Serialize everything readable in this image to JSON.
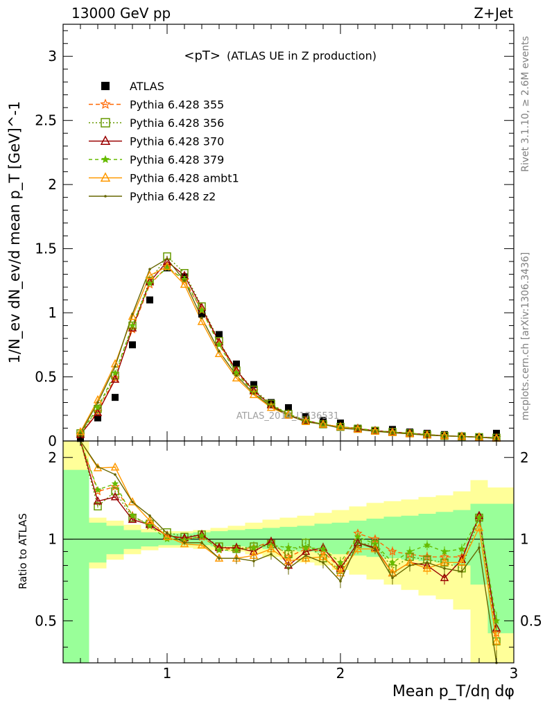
{
  "header": {
    "left": "13000 GeV pp",
    "right": "Z+Jet",
    "plot_title": "<pT>",
    "plot_subtitle": "(ATLAS UE in Z production)",
    "watermark": "ATLAS_2014_I1736531",
    "side_text_top": "Rivet 3.1.10, ≥ 2.6M events",
    "side_text_bottom": "mcplots.cern.ch [arXiv:1306.3436]"
  },
  "chart_data": [
    {
      "type": "line",
      "panel": "main",
      "ylabel": "1/N_ev dN_ev/d mean p_T [GeV]^-1",
      "xlabel": "Mean p_T/dη dφ",
      "xlim": [
        0.4,
        3.0
      ],
      "ylim": [
        0,
        3.25
      ],
      "x_ticks": [
        "1",
        "2",
        "3"
      ],
      "y_ticks": [
        "0",
        "0.5",
        "1",
        "1.5",
        "2",
        "2.5",
        "3"
      ],
      "x": [
        0.5,
        0.6,
        0.7,
        0.8,
        0.9,
        1.0,
        1.1,
        1.2,
        1.3,
        1.4,
        1.5,
        1.6,
        1.7,
        1.8,
        1.9,
        2.0,
        2.1,
        2.2,
        2.3,
        2.4,
        2.5,
        2.6,
        2.7,
        2.8,
        2.9
      ],
      "legend_position": "top-left",
      "series": [
        {
          "name": "ATLAS",
          "color": "#000000",
          "marker": "square",
          "values": [
            0.02,
            0.18,
            0.34,
            0.75,
            1.1,
            1.35,
            1.28,
            0.99,
            0.83,
            0.6,
            0.44,
            0.3,
            0.26,
            0.19,
            0.16,
            0.14,
            0.1,
            0.08,
            0.09,
            0.07,
            0.06,
            0.05,
            0.04,
            0.03,
            0.06
          ]
        },
        {
          "name": "Pythia 6.428 355",
          "color": "#ff6600",
          "marker": "star",
          "dash": "6,4",
          "values": [
            0.05,
            0.23,
            0.49,
            0.87,
            1.22,
            1.36,
            1.25,
            1.02,
            0.76,
            0.54,
            0.39,
            0.28,
            0.21,
            0.16,
            0.13,
            0.11,
            0.1,
            0.08,
            0.07,
            0.06,
            0.05,
            0.04,
            0.035,
            0.03,
            0.025
          ]
        },
        {
          "name": "Pythia 6.428 356",
          "color": "#669900",
          "marker": "open-square",
          "dash": "2,3",
          "values": [
            0.06,
            0.25,
            0.51,
            0.9,
            1.25,
            1.44,
            1.31,
            1.05,
            0.78,
            0.55,
            0.4,
            0.29,
            0.21,
            0.16,
            0.13,
            0.11,
            0.095,
            0.08,
            0.07,
            0.06,
            0.05,
            0.04,
            0.035,
            0.03,
            0.025
          ]
        },
        {
          "name": "Pythia 6.428 370",
          "color": "#990000",
          "marker": "open-triangle",
          "dash": "",
          "values": [
            0.05,
            0.22,
            0.48,
            0.88,
            1.24,
            1.4,
            1.29,
            1.04,
            0.77,
            0.55,
            0.39,
            0.28,
            0.2,
            0.16,
            0.13,
            0.11,
            0.095,
            0.08,
            0.07,
            0.06,
            0.05,
            0.04,
            0.035,
            0.03,
            0.025
          ]
        },
        {
          "name": "Pythia 6.428 379",
          "color": "#66bb00",
          "marker": "small-star",
          "dash": "5,4",
          "values": [
            0.06,
            0.26,
            0.53,
            0.9,
            1.23,
            1.35,
            1.26,
            1.02,
            0.75,
            0.53,
            0.38,
            0.28,
            0.21,
            0.16,
            0.13,
            0.11,
            0.1,
            0.08,
            0.07,
            0.06,
            0.05,
            0.04,
            0.035,
            0.03,
            0.025
          ]
        },
        {
          "name": "Pythia 6.428 ambt1",
          "color": "#ff9900",
          "marker": "open-triangle",
          "dash": "",
          "values": [
            0.07,
            0.32,
            0.6,
            0.97,
            1.29,
            1.36,
            1.22,
            0.93,
            0.68,
            0.49,
            0.36,
            0.26,
            0.2,
            0.15,
            0.13,
            0.11,
            0.09,
            0.075,
            0.065,
            0.055,
            0.045,
            0.04,
            0.035,
            0.03,
            0.02
          ]
        },
        {
          "name": "Pythia 6.428 z2",
          "color": "#666600",
          "marker": "dot",
          "dash": "",
          "values": [
            0.06,
            0.3,
            0.58,
            0.99,
            1.34,
            1.42,
            1.25,
            0.96,
            0.7,
            0.51,
            0.37,
            0.27,
            0.2,
            0.15,
            0.13,
            0.1,
            0.09,
            0.075,
            0.065,
            0.055,
            0.045,
            0.04,
            0.035,
            0.03,
            0.02
          ]
        }
      ]
    },
    {
      "type": "line",
      "panel": "ratio",
      "ylabel": "Ratio to ATLAS",
      "xlim": [
        0.4,
        3.0
      ],
      "ylim": [
        0.35,
        2.3
      ],
      "y_ticks": [
        "0.5",
        "1",
        "2"
      ],
      "reference_line": 1,
      "band_bins": [
        0.4,
        0.55,
        0.65,
        0.75,
        0.85,
        0.95,
        1.05,
        1.15,
        1.25,
        1.35,
        1.45,
        1.55,
        1.65,
        1.75,
        1.85,
        1.95,
        2.05,
        2.15,
        2.25,
        2.35,
        2.45,
        2.55,
        2.65,
        2.75,
        2.85,
        2.95,
        3.0
      ],
      "band_inner": [
        [
          0.35,
          1.8
        ],
        [
          0.82,
          1.15
        ],
        [
          0.88,
          1.12
        ],
        [
          0.92,
          1.08
        ],
        [
          0.94,
          1.06
        ],
        [
          0.95,
          1.05
        ],
        [
          0.95,
          1.05
        ],
        [
          0.95,
          1.06
        ],
        [
          0.94,
          1.07
        ],
        [
          0.94,
          1.08
        ],
        [
          0.93,
          1.09
        ],
        [
          0.92,
          1.1
        ],
        [
          0.91,
          1.11
        ],
        [
          0.9,
          1.12
        ],
        [
          0.89,
          1.14
        ],
        [
          0.88,
          1.15
        ],
        [
          0.87,
          1.17
        ],
        [
          0.86,
          1.19
        ],
        [
          0.85,
          1.21
        ],
        [
          0.84,
          1.22
        ],
        [
          0.83,
          1.24
        ],
        [
          0.82,
          1.26
        ],
        [
          0.8,
          1.28
        ],
        [
          0.68,
          1.35
        ],
        [
          0.45,
          1.35
        ],
        [
          0.45,
          1.35
        ]
      ],
      "band_outer": [
        [
          0.35,
          2.3
        ],
        [
          0.78,
          1.2
        ],
        [
          0.84,
          1.17
        ],
        [
          0.88,
          1.13
        ],
        [
          0.91,
          1.09
        ],
        [
          0.93,
          1.07
        ],
        [
          0.93,
          1.07
        ],
        [
          0.92,
          1.08
        ],
        [
          0.91,
          1.1
        ],
        [
          0.9,
          1.12
        ],
        [
          0.88,
          1.15
        ],
        [
          0.86,
          1.18
        ],
        [
          0.84,
          1.2
        ],
        [
          0.82,
          1.22
        ],
        [
          0.8,
          1.25
        ],
        [
          0.77,
          1.28
        ],
        [
          0.74,
          1.32
        ],
        [
          0.71,
          1.36
        ],
        [
          0.68,
          1.38
        ],
        [
          0.65,
          1.4
        ],
        [
          0.62,
          1.43
        ],
        [
          0.6,
          1.45
        ],
        [
          0.55,
          1.5
        ],
        [
          0.35,
          1.65
        ],
        [
          0.35,
          1.55
        ],
        [
          0.35,
          1.55
        ]
      ],
      "series": [
        {
          "name": "Pythia 6.428 355",
          "values": [
            2.4,
            1.5,
            1.56,
            1.22,
            1.12,
            1.03,
            1.0,
            1.02,
            0.92,
            0.92,
            0.93,
            0.98,
            0.86,
            0.92,
            0.9,
            0.78,
            1.05,
            1.0,
            0.9,
            0.88,
            0.86,
            0.86,
            0.86,
            1.2,
            0.45
          ]
        },
        {
          "name": "Pythia 6.428 356",
          "values": [
            2.4,
            1.32,
            1.5,
            1.2,
            1.14,
            1.06,
            1.02,
            1.04,
            0.94,
            0.92,
            0.94,
            0.96,
            0.88,
            0.97,
            0.85,
            0.77,
            0.96,
            0.96,
            0.78,
            0.86,
            0.84,
            0.82,
            0.78,
            1.2,
            0.42
          ]
        },
        {
          "name": "Pythia 6.428 370",
          "values": [
            2.4,
            1.38,
            1.43,
            1.18,
            1.13,
            1.03,
            1.01,
            1.04,
            0.93,
            0.93,
            0.9,
            0.98,
            0.8,
            0.9,
            0.93,
            0.78,
            0.97,
            0.93,
            0.75,
            0.82,
            0.8,
            0.72,
            0.84,
            1.22,
            0.47
          ]
        },
        {
          "name": "Pythia 6.428 379",
          "values": [
            2.4,
            1.52,
            1.6,
            1.22,
            1.12,
            1.0,
            0.99,
            1.03,
            0.91,
            0.91,
            0.93,
            0.95,
            0.93,
            0.93,
            0.92,
            0.82,
            1.02,
            0.96,
            0.82,
            0.9,
            0.95,
            0.9,
            0.92,
            1.2,
            0.5
          ]
        },
        {
          "name": "Pythia 6.428 ambt1",
          "values": [
            2.4,
            1.83,
            1.84,
            1.37,
            1.17,
            1.02,
            0.96,
            0.95,
            0.85,
            0.85,
            0.87,
            0.92,
            0.83,
            0.85,
            0.86,
            0.75,
            0.92,
            0.92,
            0.75,
            0.82,
            0.78,
            0.82,
            0.82,
            1.1,
            0.42
          ]
        },
        {
          "name": "Pythia 6.428 z2",
          "values": [
            2.4,
            1.85,
            1.73,
            1.37,
            1.22,
            1.05,
            0.97,
            0.97,
            0.85,
            0.85,
            0.83,
            0.88,
            0.78,
            0.87,
            0.82,
            0.7,
            0.97,
            0.92,
            0.72,
            0.8,
            0.82,
            0.78,
            0.76,
            0.93,
            0.35
          ]
        }
      ]
    }
  ]
}
